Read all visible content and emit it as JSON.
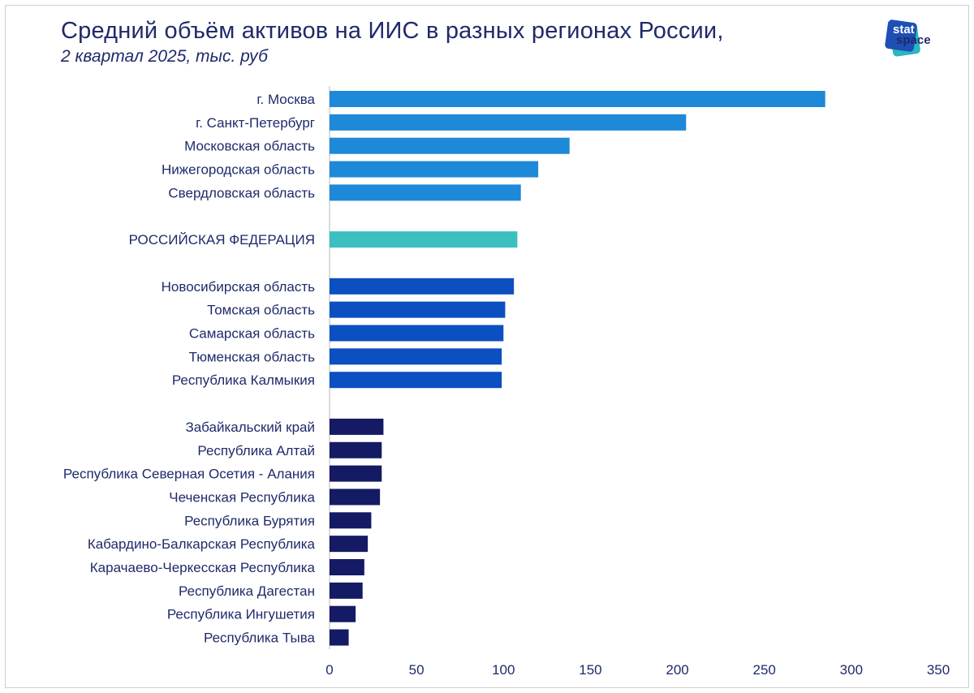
{
  "header": {
    "title": "Средний объём активов на ИИС в разных регионах России,",
    "subtitle": "2 квартал 2025, тыс. руб"
  },
  "logo": {
    "line1": "stat",
    "line2": "space"
  },
  "colors": {
    "top": "#1e88d9",
    "federation": "#3bbfbf",
    "middle": "#0b4fc0",
    "bottom": "#141a63",
    "axis": "#d0d0d0",
    "text": "#1f2a6b"
  },
  "chart_data": {
    "type": "bar",
    "orientation": "horizontal",
    "title": "Средний объём активов на ИИС в разных регионах России,",
    "subtitle": "2 квартал 2025, тыс. руб",
    "xlim": [
      0,
      350
    ],
    "xticks": [
      0,
      50,
      100,
      150,
      200,
      250,
      300,
      350
    ],
    "categories": [
      "г. Москва",
      "г. Санкт-Петербург",
      "Московская область",
      "Нижегородская область",
      "Свердловская область",
      "",
      "РОССИЙСКАЯ ФЕДЕРАЦИЯ",
      "",
      "Новосибирская область",
      "Томская область",
      "Самарская область",
      "Тюменская область",
      "Республика Калмыкия",
      "",
      "Забайкальский край",
      "Республика Алтай",
      "Республика Северная Осетия - Алания",
      "Чеченская Республика",
      "Республика Бурятия",
      "Кабардино-Балкарская Республика",
      "Карачаево-Черкесская Республика",
      "Республика Дагестан",
      "Республика Ингушетия",
      "Республика Тыва"
    ],
    "values": [
      285,
      205,
      138,
      120,
      110,
      null,
      108,
      null,
      106,
      101,
      100,
      99,
      99,
      null,
      31,
      30,
      30,
      29,
      24,
      22,
      20,
      19,
      15,
      11
    ],
    "groups": [
      "top",
      "top",
      "top",
      "top",
      "top",
      null,
      "federation",
      null,
      "middle",
      "middle",
      "middle",
      "middle",
      "middle",
      null,
      "bottom",
      "bottom",
      "bottom",
      "bottom",
      "bottom",
      "bottom",
      "bottom",
      "bottom",
      "bottom",
      "bottom"
    ]
  }
}
